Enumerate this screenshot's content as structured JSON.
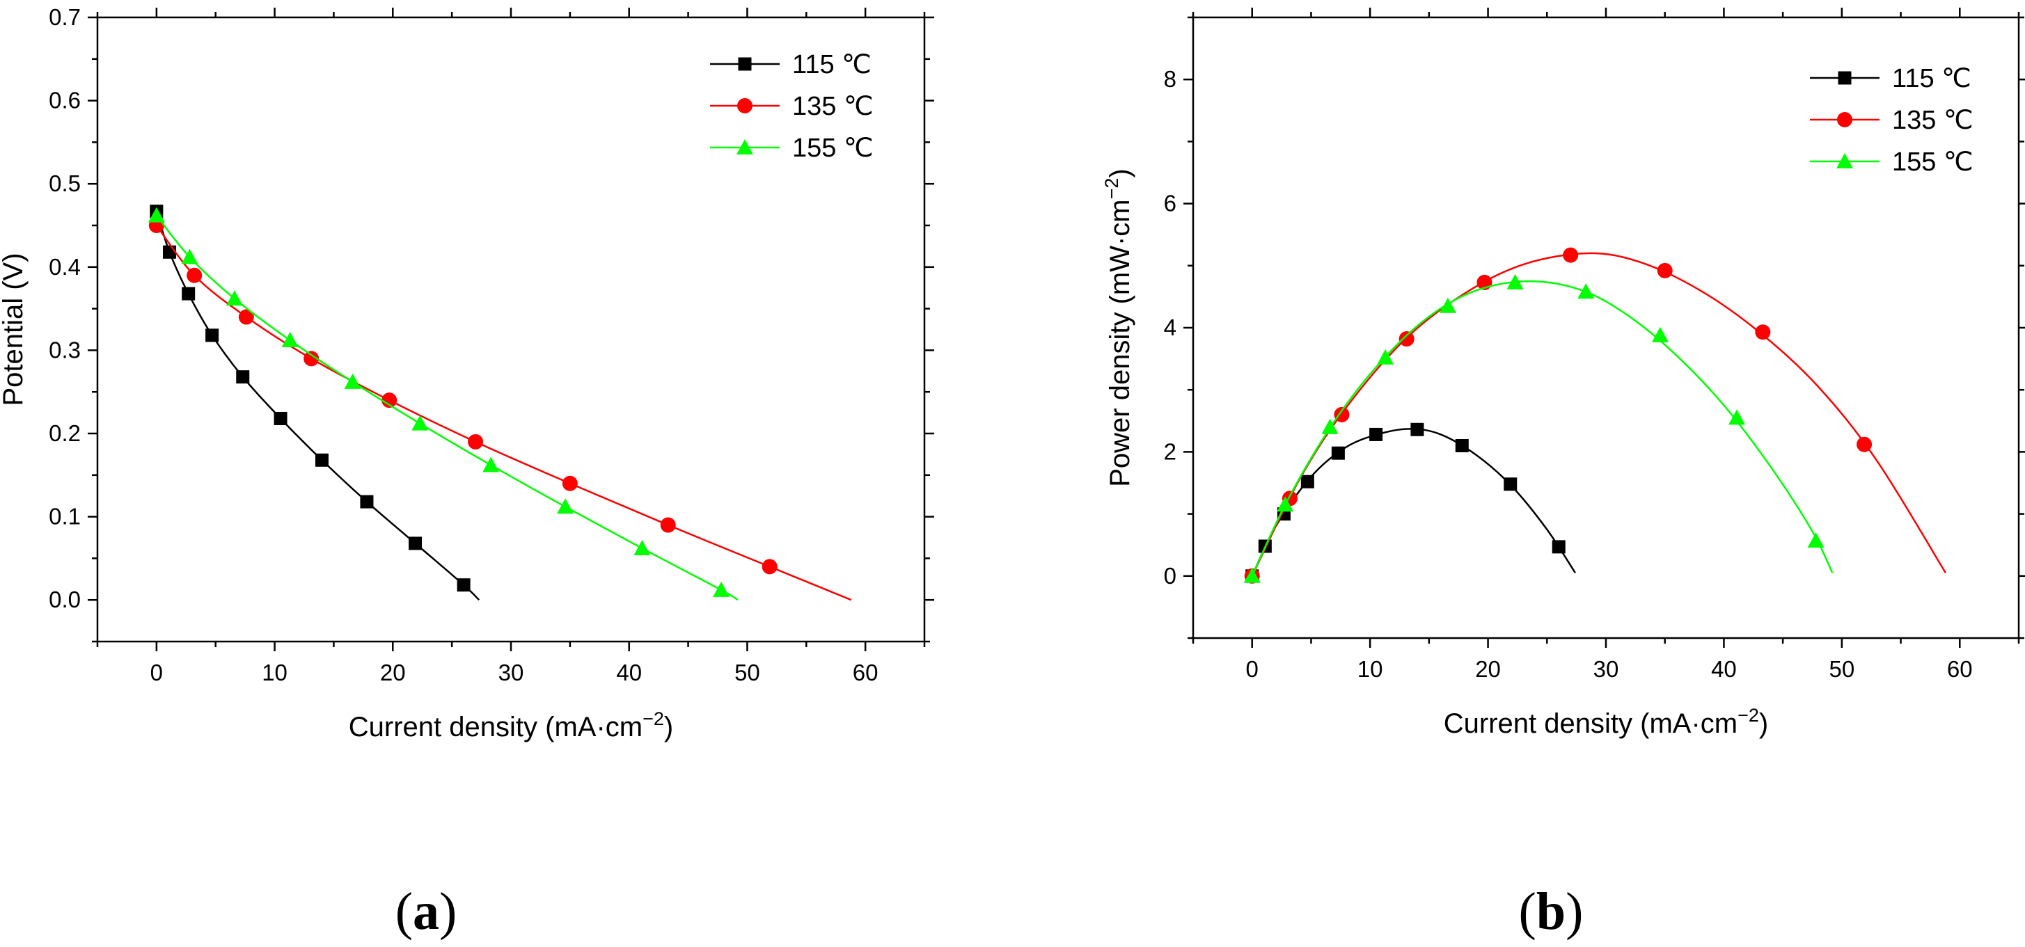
{
  "figure": {
    "panel_a_label": {
      "open": "(",
      "letter": "a",
      "close": ")"
    },
    "panel_b_label": {
      "open": "(",
      "letter": "b",
      "close": ")"
    }
  },
  "chart_data": [
    {
      "type": "line",
      "title": "",
      "xlabel": "Current density (mA·cm",
      "xlabel_sup": "−2",
      "xlabel_close": ")",
      "ylabel": "Potential (V)",
      "xlim": [
        -5,
        65
      ],
      "ylim": [
        -0.05,
        0.7
      ],
      "xticks": [
        0,
        10,
        20,
        30,
        40,
        50,
        60
      ],
      "xtick_labels": [
        "0",
        "10",
        "20",
        "30",
        "40",
        "50",
        "60"
      ],
      "yticks": [
        0.0,
        0.1,
        0.2,
        0.3,
        0.4,
        0.5,
        0.6,
        0.7
      ],
      "ytick_labels": [
        "0.0",
        "0.1",
        "0.2",
        "0.3",
        "0.4",
        "0.5",
        "0.6",
        "0.7"
      ],
      "legend_position": "top-right",
      "series": [
        {
          "name": "115 ℃",
          "color": "#000000",
          "marker": "square",
          "x": [
            0,
            1.1,
            2.7,
            4.7,
            7.3,
            10.5,
            14.0,
            17.8,
            21.9,
            26.0
          ],
          "y": [
            0.467,
            0.418,
            0.368,
            0.318,
            0.268,
            0.218,
            0.168,
            0.118,
            0.068,
            0.018
          ],
          "fit_end": [
            27.3,
            0.0
          ]
        },
        {
          "name": "135 ℃",
          "color": "#ff0000",
          "marker": "circle",
          "x": [
            0,
            3.2,
            7.6,
            13.1,
            19.7,
            27.0,
            35.0,
            43.3,
            51.9
          ],
          "y": [
            0.45,
            0.39,
            0.34,
            0.29,
            0.24,
            0.19,
            0.14,
            0.09,
            0.04
          ],
          "fit_end": [
            58.8,
            0.0
          ]
        },
        {
          "name": "155 ℃",
          "color": "#00ff00",
          "marker": "triangle",
          "x": [
            0,
            2.8,
            6.6,
            11.3,
            16.6,
            22.3,
            28.3,
            34.6,
            41.1,
            47.8
          ],
          "y": [
            0.462,
            0.412,
            0.362,
            0.312,
            0.262,
            0.212,
            0.162,
            0.112,
            0.062,
            0.012
          ],
          "fit_end": [
            49.2,
            0.0
          ]
        }
      ]
    },
    {
      "type": "line",
      "title": "",
      "xlabel": "Current density (mA·cm",
      "xlabel_sup": "−2",
      "xlabel_close": ")",
      "ylabel": "Power density (mW·cm",
      "ylabel_sup": "−2",
      "ylabel_close": ")",
      "xlim": [
        -5,
        65
      ],
      "ylim": [
        -1,
        9
      ],
      "xticks": [
        0,
        10,
        20,
        30,
        40,
        50,
        60
      ],
      "xtick_labels": [
        "0",
        "10",
        "20",
        "30",
        "40",
        "50",
        "60"
      ],
      "yticks": [
        0,
        2,
        4,
        6,
        8
      ],
      "ytick_labels": [
        "0",
        "2",
        "4",
        "6",
        "8"
      ],
      "legend_position": "top-right",
      "series": [
        {
          "name": "115 ℃",
          "color": "#000000",
          "marker": "square",
          "x": [
            0,
            1.1,
            2.7,
            4.7,
            7.3,
            10.5,
            14.0,
            17.8,
            21.9,
            26.0
          ],
          "y": [
            0,
            0.48,
            1.0,
            1.52,
            1.98,
            2.28,
            2.36,
            2.1,
            1.48,
            0.47
          ],
          "fit": [
            [
              0,
              0
            ],
            [
              2,
              0.8
            ],
            [
              5,
              1.6
            ],
            [
              8,
              2.08
            ],
            [
              11,
              2.3
            ],
            [
              13.5,
              2.37
            ],
            [
              16,
              2.28
            ],
            [
              19,
              1.95
            ],
            [
              22,
              1.45
            ],
            [
              25,
              0.75
            ],
            [
              27.4,
              0.05
            ]
          ]
        },
        {
          "name": "135 ℃",
          "color": "#ff0000",
          "marker": "circle",
          "x": [
            0,
            3.2,
            7.6,
            13.1,
            19.7,
            27.0,
            35.0,
            43.3,
            51.9
          ],
          "y": [
            0,
            1.25,
            2.6,
            3.82,
            4.73,
            5.17,
            4.92,
            3.93,
            2.12
          ],
          "fit": [
            [
              0,
              0
            ],
            [
              4,
              1.55
            ],
            [
              8,
              2.72
            ],
            [
              13,
              3.82
            ],
            [
              18,
              4.55
            ],
            [
              23,
              5.02
            ],
            [
              28.5,
              5.2
            ],
            [
              33,
              5.05
            ],
            [
              38,
              4.6
            ],
            [
              43,
              3.93
            ],
            [
              48,
              3.05
            ],
            [
              53,
              1.85
            ],
            [
              58.8,
              0.05
            ]
          ]
        },
        {
          "name": "155 ℃",
          "color": "#00ff00",
          "marker": "triangle",
          "x": [
            0,
            2.8,
            6.6,
            11.3,
            16.6,
            22.3,
            28.3,
            34.6,
            41.1,
            47.8
          ],
          "y": [
            0,
            1.15,
            2.4,
            3.52,
            4.35,
            4.73,
            4.58,
            3.88,
            2.55,
            0.57
          ],
          "fit": [
            [
              0,
              0
            ],
            [
              3,
              1.22
            ],
            [
              7,
              2.5
            ],
            [
              11,
              3.47
            ],
            [
              15,
              4.18
            ],
            [
              19,
              4.6
            ],
            [
              23.5,
              4.75
            ],
            [
              28,
              4.6
            ],
            [
              32,
              4.18
            ],
            [
              36,
              3.55
            ],
            [
              40,
              2.75
            ],
            [
              44,
              1.75
            ],
            [
              47.5,
              0.72
            ],
            [
              49.2,
              0.05
            ]
          ]
        }
      ]
    }
  ]
}
